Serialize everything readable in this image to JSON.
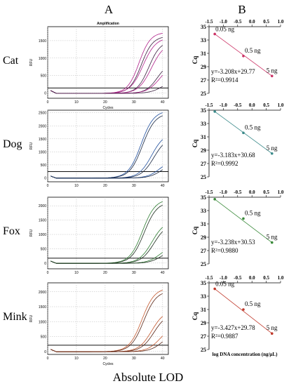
{
  "figure": {
    "panel_a_label": "A",
    "panel_b_label": "B",
    "caption": "Absolute LOD",
    "amp_title": "Amplification",
    "amp_xlabel": "Cycles",
    "amp_ylabel": "RFU",
    "std_ylabel": "Cq",
    "std_xlabel": "log DNA concentration (ng/μL)"
  },
  "chart_data": [
    {
      "type": "line",
      "species": "Cat",
      "title": "Amplification",
      "xlabel": "Cycles",
      "ylabel": "RFU",
      "xlim": [
        0,
        42
      ],
      "xticks": [
        0,
        10,
        20,
        30,
        40
      ],
      "ylim": [
        -150,
        1900
      ],
      "yticks": [
        0,
        500,
        1000,
        1500
      ],
      "grid": true,
      "threshold": 145,
      "color": "#b0218a",
      "dark_color": "#3a1f3f",
      "curves": [
        {
          "ct": 27.8,
          "plateau": 1750,
          "k": 0.5
        },
        {
          "ct": 28.6,
          "plateau": 1640,
          "k": 0.5
        },
        {
          "ct": 29.2,
          "plateau": 1600,
          "k": 0.45
        },
        {
          "ct": 31.2,
          "plateau": 1500,
          "k": 0.5
        },
        {
          "ct": 32.1,
          "plateau": 1450,
          "k": 0.45
        },
        {
          "ct": 34.2,
          "plateau": 900,
          "k": 0.5
        },
        {
          "ct": 35.0,
          "plateau": 850,
          "k": 0.45
        },
        {
          "ct": 36.2,
          "plateau": 420,
          "k": 0.45
        }
      ]
    },
    {
      "type": "line",
      "species": "Dog",
      "title": "",
      "xlabel": "",
      "ylabel": "RFU",
      "xlim": [
        0,
        42
      ],
      "xticks": [
        0,
        10,
        20,
        30,
        40
      ],
      "ylim": [
        -150,
        2600
      ],
      "yticks": [
        0,
        500,
        1000,
        1500,
        2000,
        2500
      ],
      "grid": true,
      "threshold": 240,
      "color": "#1f4f9e",
      "dark_color": "#16243f",
      "curves": [
        {
          "ct": 28.5,
          "plateau": 2600,
          "k": 0.45
        },
        {
          "ct": 29.0,
          "plateau": 2500,
          "k": 0.45
        },
        {
          "ct": 32.2,
          "plateau": 1750,
          "k": 0.45
        },
        {
          "ct": 33.0,
          "plateau": 1600,
          "k": 0.45
        },
        {
          "ct": 35.2,
          "plateau": 750,
          "k": 0.45
        },
        {
          "ct": 36.0,
          "plateau": 650,
          "k": 0.45
        }
      ]
    },
    {
      "type": "line",
      "species": "Fox",
      "title": "",
      "xlabel": "",
      "ylabel": "RFU",
      "xlim": [
        0,
        42
      ],
      "xticks": [
        0,
        10,
        20,
        30,
        40
      ],
      "ylim": [
        -200,
        2300
      ],
      "yticks": [
        0,
        500,
        1000,
        1500,
        2000
      ],
      "grid": true,
      "threshold": 170,
      "color": "#2e7d32",
      "dark_color": "#1b2b1c",
      "curves": [
        {
          "ct": 29.0,
          "plateau": 2250,
          "k": 0.45
        },
        {
          "ct": 29.6,
          "plateau": 2150,
          "k": 0.45
        },
        {
          "ct": 32.3,
          "plateau": 1500,
          "k": 0.45
        },
        {
          "ct": 33.0,
          "plateau": 1400,
          "k": 0.45
        },
        {
          "ct": 35.2,
          "plateau": 650,
          "k": 0.45
        },
        {
          "ct": 36.0,
          "plateau": 550,
          "k": 0.45
        }
      ]
    },
    {
      "type": "line",
      "species": "Mink",
      "title": "",
      "xlabel": "Cycles",
      "ylabel": "RFU",
      "xlim": [
        0,
        42
      ],
      "xticks": [
        0,
        10,
        20,
        30,
        40
      ],
      "ylim": [
        -100,
        2300
      ],
      "yticks": [
        0,
        500,
        1000,
        1500,
        2000
      ],
      "grid": true,
      "threshold": 210,
      "color": "#c4572c",
      "dark_color": "#5a2617",
      "curves": [
        {
          "ct": 28.8,
          "plateau": 2150,
          "k": 0.45
        },
        {
          "ct": 29.4,
          "plateau": 2050,
          "k": 0.45
        },
        {
          "ct": 32.2,
          "plateau": 1400,
          "k": 0.45
        },
        {
          "ct": 33.0,
          "plateau": 1300,
          "k": 0.45
        },
        {
          "ct": 35.2,
          "plateau": 900,
          "k": 0.45
        },
        {
          "ct": 36.2,
          "plateau": 700,
          "k": 0.45
        }
      ]
    },
    {
      "type": "scatter",
      "species": "Cat",
      "xlabel": "",
      "ylabel": "Cq",
      "xlim": [
        -1.5,
        1.0
      ],
      "xticks": [
        -1.5,
        -1.0,
        -0.5,
        0.0,
        0.5,
        1.0
      ],
      "ylim": [
        25,
        35
      ],
      "yticks": [
        25,
        27,
        29,
        31,
        33,
        35
      ],
      "color": "#cc3366",
      "points": [
        {
          "x": -1.3,
          "y": 33.9,
          "label": "0.05 ng"
        },
        {
          "x": -0.3,
          "y": 30.6,
          "label": "0.5 ng"
        },
        {
          "x": 0.7,
          "y": 27.6,
          "label": "5 ng"
        }
      ],
      "equation": "y=-3.208x+29.77",
      "r2": "R²=0.9914"
    },
    {
      "type": "scatter",
      "species": "Dog",
      "xlabel": "",
      "ylabel": "Cq",
      "xlim": [
        -1.5,
        1.0
      ],
      "xticks": [
        -1.5,
        -1.0,
        -0.5,
        0.0,
        0.5,
        1.0
      ],
      "ylim": [
        25,
        35
      ],
      "yticks": [
        25,
        27,
        29,
        31,
        33,
        35
      ],
      "color": "#3a8a8a",
      "points": [
        {
          "x": -1.3,
          "y": 34.8,
          "label": ""
        },
        {
          "x": -0.3,
          "y": 31.6,
          "label": "0.5 ng"
        },
        {
          "x": 0.7,
          "y": 28.5,
          "label": "5 ng"
        }
      ],
      "equation": "y=-3.183x+30.68",
      "r2": "R²=0.9992"
    },
    {
      "type": "scatter",
      "species": "Fox",
      "xlabel": "",
      "ylabel": "Cq",
      "xlim": [
        -1.5,
        1.0
      ],
      "xticks": [
        -1.5,
        -1.0,
        -0.5,
        0.0,
        0.5,
        1.0
      ],
      "ylim": [
        25,
        35
      ],
      "yticks": [
        25,
        27,
        29,
        31,
        33,
        35
      ],
      "color": "#3a8a3a",
      "points": [
        {
          "x": -1.3,
          "y": 34.7,
          "label": ""
        },
        {
          "x": -0.3,
          "y": 31.8,
          "label": "0.5 ng"
        },
        {
          "x": 0.7,
          "y": 28.2,
          "label": "5 ng"
        }
      ],
      "equation": "y=-3.238x+30.53",
      "r2": "R²=0.9880"
    },
    {
      "type": "scatter",
      "species": "Mink",
      "xlabel": "log DNA concentration (ng/μL)",
      "ylabel": "Cq",
      "xlim": [
        -1.5,
        1.0
      ],
      "xticks": [
        -1.5,
        -1.0,
        -0.5,
        0.0,
        0.5,
        1.0
      ],
      "ylim": [
        25,
        35
      ],
      "yticks": [
        25,
        27,
        29,
        31,
        33,
        35
      ],
      "color": "#c0392b",
      "points": [
        {
          "x": -1.3,
          "y": 34.1,
          "label": "0.05 ng"
        },
        {
          "x": -0.3,
          "y": 31.0,
          "label": "0.5 ng"
        },
        {
          "x": 0.7,
          "y": 27.4,
          "label": "5 ng"
        }
      ],
      "equation": "y=-3.427x+29.78",
      "r2": "R²=0.9887"
    }
  ]
}
